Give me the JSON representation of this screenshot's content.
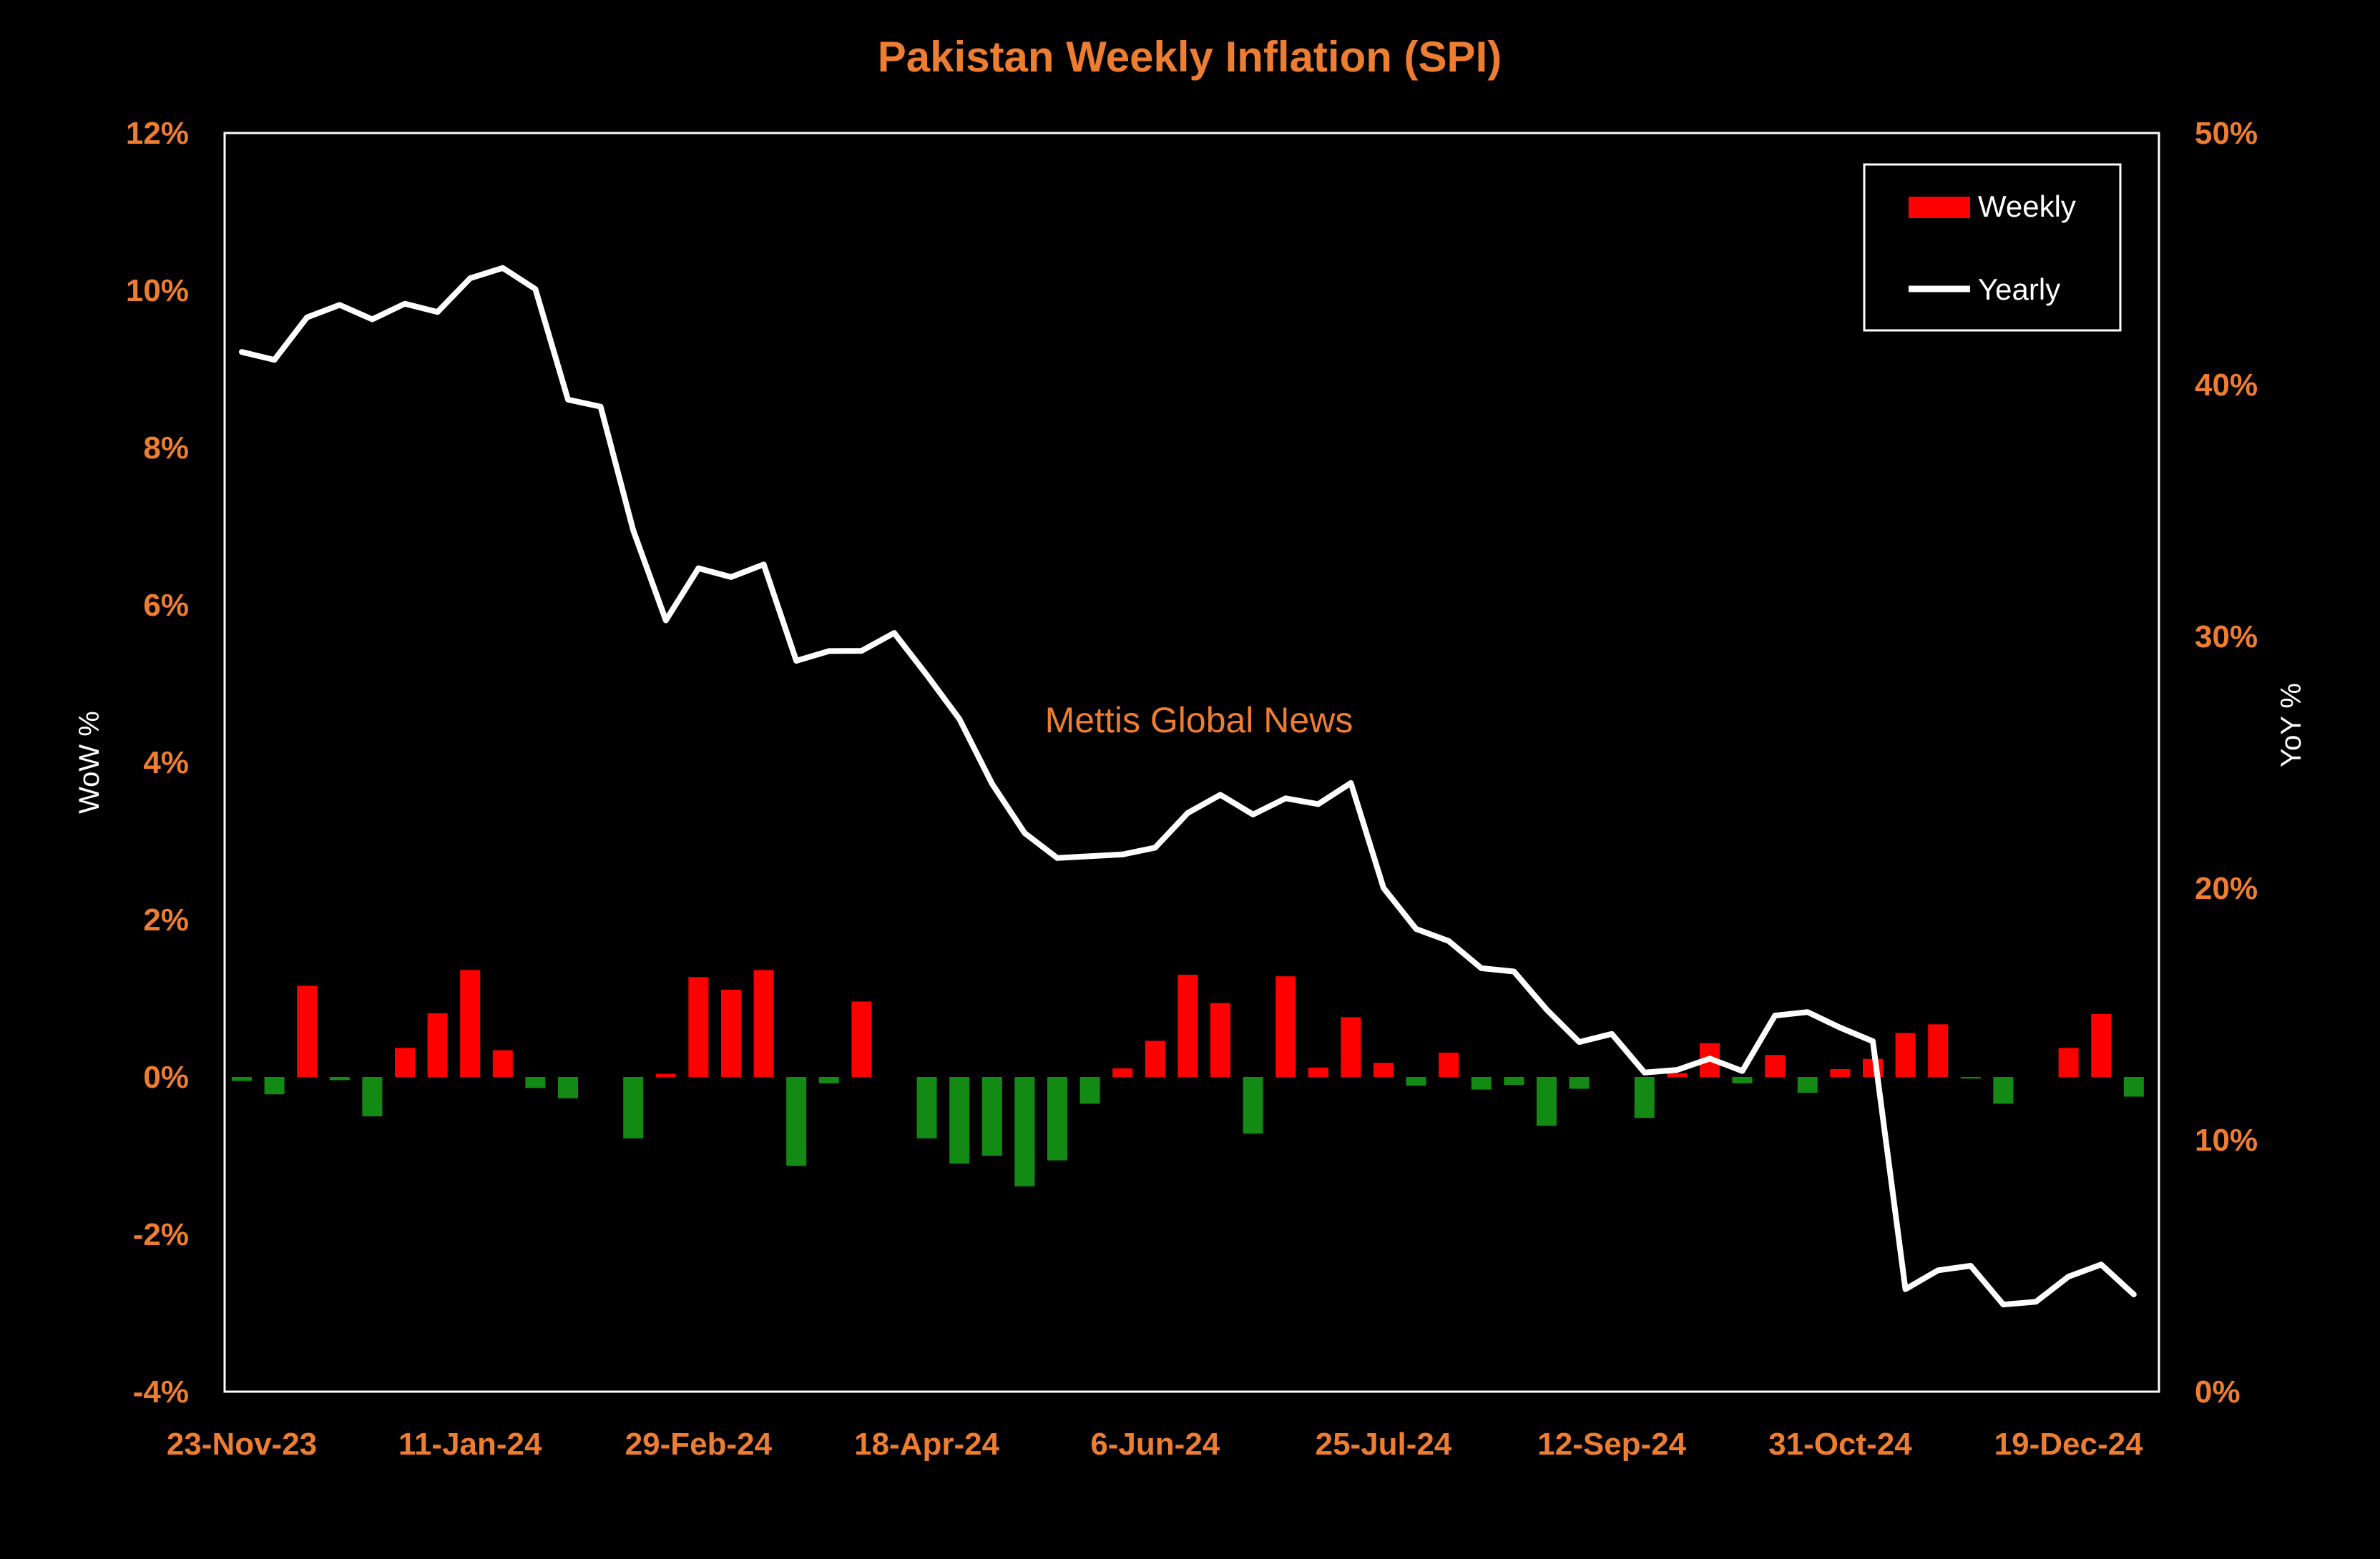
{
  "colors": {
    "background": "#000000",
    "accent_text": "#ED7D31",
    "white": "#FFFFFF",
    "positive_bar": "#FF0000",
    "negative_bar": "#138A13"
  },
  "chart_data": {
    "type": "bar",
    "title": "Pakistan Weekly Inflation (SPI)",
    "watermark": "Mettis Global News",
    "y_left": {
      "label": "WoW %",
      "lim": [
        -4,
        12
      ],
      "ticks": [
        -4,
        -2,
        0,
        2,
        4,
        6,
        8,
        10,
        12
      ],
      "tick_labels": [
        "-4%",
        "-2%",
        "0%",
        "2%",
        "4%",
        "6%",
        "8%",
        "10%",
        "12%"
      ]
    },
    "y_right": {
      "label": "YoY %",
      "lim": [
        0,
        50
      ],
      "ticks": [
        0,
        10,
        20,
        30,
        40,
        50
      ],
      "tick_labels": [
        "0%",
        "10%",
        "20%",
        "30%",
        "40%",
        "50%"
      ]
    },
    "x_tick_labels": [
      "23-Nov-23",
      "11-Jan-24",
      "29-Feb-24",
      "18-Apr-24",
      "6-Jun-24",
      "25-Jul-24",
      "12-Sep-24",
      "31-Oct-24",
      "19-Dec-24"
    ],
    "x_tick_week_index": [
      0,
      7,
      14,
      21,
      28,
      35,
      42,
      49,
      56
    ],
    "legend": {
      "position": "top-right",
      "entries": [
        "Weekly",
        "Yearly"
      ]
    },
    "series": [
      {
        "name": "Weekly",
        "type": "bar",
        "axis": "left",
        "values": [
          -0.05,
          -0.22,
          1.16,
          -0.04,
          -0.5,
          0.37,
          0.81,
          1.36,
          0.34,
          -0.14,
          -0.27,
          0.0,
          -0.78,
          0.04,
          1.27,
          1.11,
          1.36,
          -1.13,
          -0.08,
          0.96,
          0.0,
          -0.78,
          -1.1,
          -1.0,
          -1.39,
          -1.06,
          -0.34,
          0.11,
          0.46,
          1.3,
          0.94,
          -0.72,
          1.28,
          0.12,
          0.76,
          0.18,
          -0.11,
          0.31,
          -0.16,
          -0.1,
          -0.62,
          -0.15,
          0.0,
          -0.52,
          0.05,
          0.43,
          -0.08,
          0.28,
          -0.2,
          0.1,
          0.23,
          0.56,
          0.67,
          -0.02,
          -0.34,
          0.0,
          0.37,
          0.8,
          -0.25
        ]
      },
      {
        "name": "Yearly",
        "type": "line",
        "axis": "right",
        "values": [
          41.3,
          40.99,
          42.68,
          43.17,
          42.6,
          43.22,
          42.89,
          44.23,
          44.64,
          43.8,
          39.41,
          39.13,
          34.22,
          30.64,
          32.71,
          32.36,
          32.86,
          29.03,
          29.42,
          29.43,
          30.14,
          28.47,
          26.72,
          24.15,
          22.19,
          21.2,
          21.27,
          21.34,
          21.61,
          22.99,
          23.71,
          22.93,
          23.57,
          23.34,
          24.18,
          20.01,
          18.38,
          17.9,
          16.82,
          16.69,
          15.18,
          13.89,
          14.21,
          12.68,
          12.78,
          13.23,
          12.74,
          14.94,
          15.08,
          14.46,
          13.92,
          4.07,
          4.82,
          5.0,
          3.46,
          3.57,
          4.57,
          5.05,
          3.86
        ]
      }
    ]
  }
}
